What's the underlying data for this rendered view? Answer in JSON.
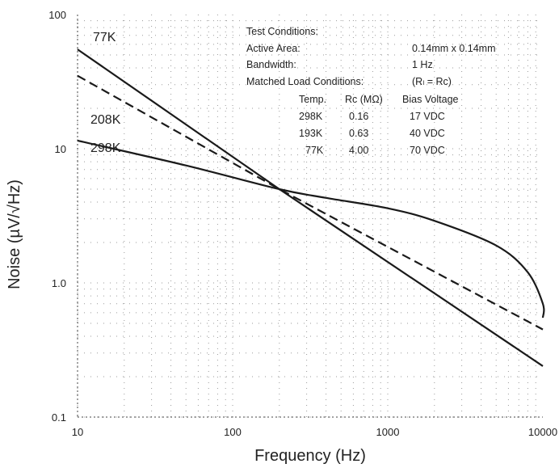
{
  "chart_data": {
    "type": "line",
    "title": "",
    "xlabel": "Frequency (Hz)",
    "ylabel": "Noise (µV/√Hz)",
    "xscale": "log",
    "yscale": "log",
    "xlim": [
      10,
      10000
    ],
    "ylim": [
      0.1,
      100
    ],
    "grid": true,
    "x_ticks": [
      {
        "value": 10,
        "label": "10"
      },
      {
        "value": 100,
        "label": "100"
      },
      {
        "value": 1000,
        "label": "1000"
      },
      {
        "value": 10000,
        "label": "10000"
      }
    ],
    "y_ticks": [
      {
        "value": 0.1,
        "label": "0.1"
      },
      {
        "value": 1,
        "label": "1.0"
      },
      {
        "value": 10,
        "label": "10"
      },
      {
        "value": 100,
        "label": "100"
      }
    ],
    "series": [
      {
        "name": "77K",
        "style": "solid",
        "x": [
          10,
          200,
          10000
        ],
        "y": [
          55,
          5.0,
          0.24
        ]
      },
      {
        "name": "208K",
        "style": "dashed",
        "x": [
          10,
          200,
          10000
        ],
        "y": [
          35,
          5.0,
          0.45
        ]
      },
      {
        "name": "298K",
        "style": "solid",
        "x": [
          10,
          50,
          200,
          400,
          1000,
          2000,
          5000,
          8000,
          10000,
          10000
        ],
        "y": [
          11.5,
          7.5,
          5.0,
          4.3,
          3.6,
          2.9,
          1.9,
          1.2,
          0.7,
          0.55
        ]
      }
    ],
    "annotations": {
      "heading": "Test Conditions:",
      "rows": [
        {
          "label": "Active Area:",
          "value": "0.14mm x 0.14mm"
        },
        {
          "label": "Bandwidth:",
          "value": "1 Hz"
        },
        {
          "label": "Matched Load Conditions:",
          "value": "(Rₗ = Rᴄ)"
        }
      ],
      "table_headers": [
        "Temp.",
        "Rc (MΩ)",
        "Bias Voltage"
      ],
      "table_rows": [
        [
          "298K",
          "0.16",
          "17 VDC"
        ],
        [
          "193K",
          "0.63",
          "40 VDC"
        ],
        [
          "77K",
          "4.00",
          "70 VDC"
        ]
      ]
    }
  }
}
